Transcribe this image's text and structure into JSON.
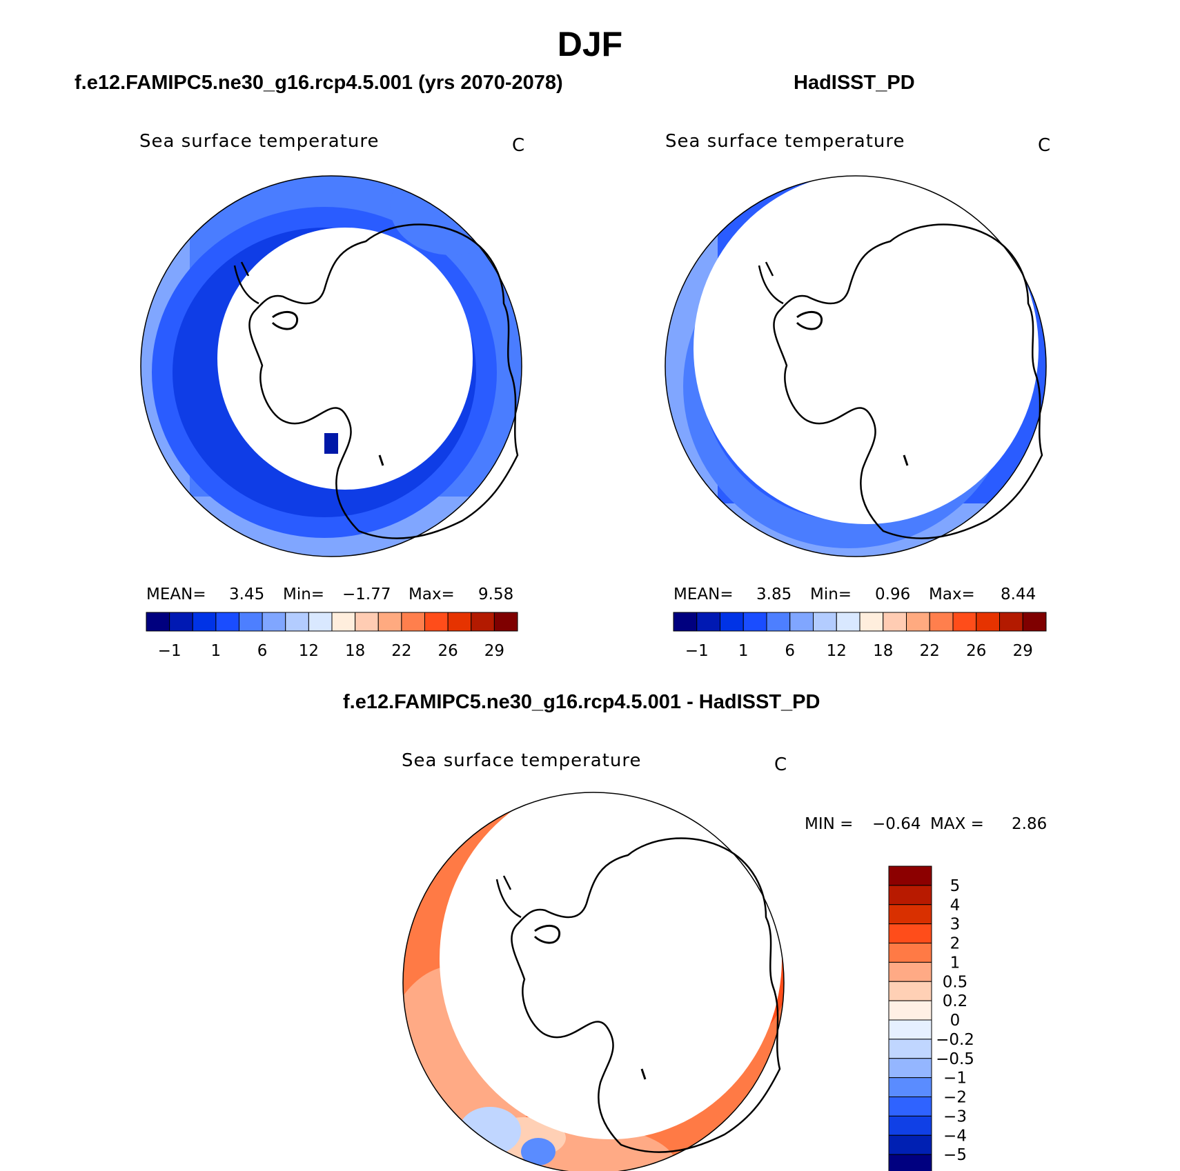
{
  "figure": {
    "season_title": "DJF"
  },
  "panels": [
    {
      "id": "model",
      "title": "f.e12.FAMIPC5.ne30_g16.rcp4.5.001 (yrs 2070-2078)",
      "variable": "Sea surface temperature",
      "units": "C",
      "stats": {
        "mean_label": "MEAN=",
        "mean": "3.45",
        "min_label": "Min=",
        "min": "−1.77",
        "max_label": "Max=",
        "max": "9.58"
      }
    },
    {
      "id": "obs",
      "title": "HadISST_PD",
      "variable": "Sea surface temperature",
      "units": "C",
      "stats": {
        "mean_label": "MEAN=",
        "mean": "3.85",
        "min_label": "Min=",
        "min": "0.96",
        "max_label": "Max=",
        "max": "8.44"
      }
    },
    {
      "id": "diff",
      "title": "f.e12.FAMIPC5.ne30_g16.rcp4.5.001 - HadISST_PD",
      "variable": "Sea surface temperature",
      "units": "C",
      "stats": {
        "min_label": "MIN =",
        "min": "−0.64",
        "max_label": "MAX =",
        "max": "2.86"
      }
    }
  ],
  "colorbar_sst": {
    "colors": [
      "#00007f",
      "#0019b3",
      "#0033e6",
      "#1a4dff",
      "#4d7fff",
      "#80a6ff",
      "#b3ccff",
      "#d9e8ff",
      "#ffeedd",
      "#ffccb3",
      "#ffaa80",
      "#ff7f4d",
      "#ff4d1a",
      "#e63300",
      "#b31a00",
      "#7f0000"
    ],
    "tick_labels": [
      "−1",
      "1",
      "6",
      "12",
      "18",
      "22",
      "26",
      "29"
    ]
  },
  "colorbar_diff": {
    "colors_top_to_bottom": [
      "#8c0000",
      "#b81a00",
      "#d93000",
      "#ff4d1a",
      "#ff7a45",
      "#ffaa85",
      "#ffd0b5",
      "#fff0e5",
      "#e6f0ff",
      "#c0d6ff",
      "#94b6ff",
      "#5a8cff",
      "#2f63ff",
      "#1040e6",
      "#0020b3",
      "#000080"
    ],
    "tick_labels": [
      "5",
      "4",
      "3",
      "2",
      "1",
      "0.5",
      "0.2",
      "0",
      "−0.2",
      "−0.5",
      "−1",
      "−2",
      "−3",
      "−4",
      "−5"
    ]
  }
}
